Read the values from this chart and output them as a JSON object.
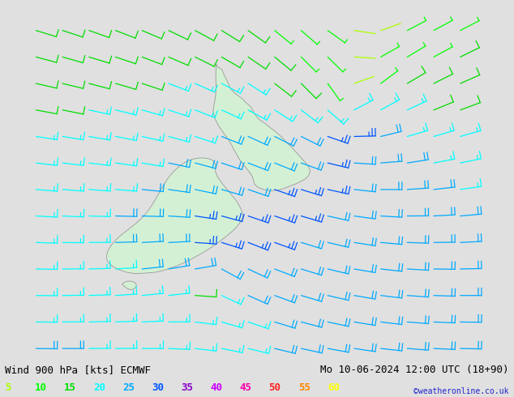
{
  "title_left": "Wind 900 hPa [kts] ECMWF",
  "title_right": "Mo 10-06-2024 12:00 UTC (18+90)",
  "copyright": "©weatheronline.co.uk",
  "background_color": "#e0e0e0",
  "land_color": "#d4f0d4",
  "land_edge_color": "#999999",
  "legend_values": [
    5,
    10,
    15,
    20,
    25,
    30,
    35,
    40,
    45,
    50,
    55,
    60
  ],
  "legend_colors": [
    "#aaff00",
    "#00ff00",
    "#00dd00",
    "#00ffff",
    "#00aaff",
    "#0055ff",
    "#8800cc",
    "#cc00ff",
    "#ff00aa",
    "#ff2222",
    "#ff8800",
    "#ffff00"
  ],
  "lon_min": 162.0,
  "lon_max": 188.0,
  "lat_min": -51.0,
  "lat_max": -31.0,
  "figsize": [
    6.34,
    4.9
  ],
  "dpi": 100,
  "font_size_title": 9,
  "font_size_legend": 9,
  "font_size_copyright": 7
}
